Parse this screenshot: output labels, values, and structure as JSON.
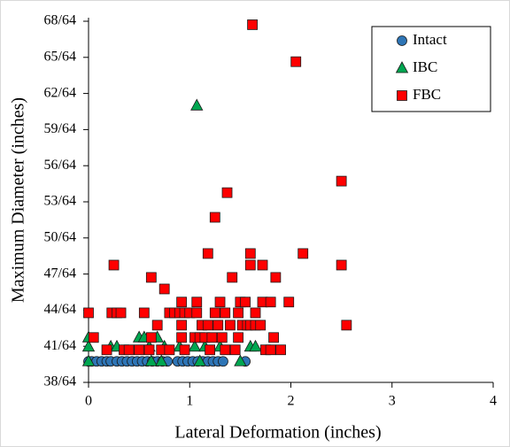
{
  "chart_data": {
    "type": "scatter",
    "x_label": "Lateral Deformation (inches)",
    "y_label": "Maximum Diameter  (inches)",
    "xlim": [
      0,
      4
    ],
    "xticks": [
      0,
      1,
      2,
      3,
      4
    ],
    "ylim": [
      0.59375,
      1.0625
    ],
    "yticks": [
      {
        "value": 0.59375,
        "label": "38/64"
      },
      {
        "value": 0.640625,
        "label": "41/64"
      },
      {
        "value": 0.6875,
        "label": "44/64"
      },
      {
        "value": 0.734375,
        "label": "47/64"
      },
      {
        "value": 0.78125,
        "label": "50/64"
      },
      {
        "value": 0.828125,
        "label": "53/64"
      },
      {
        "value": 0.875,
        "label": "56/64"
      },
      {
        "value": 0.921875,
        "label": "59/64"
      },
      {
        "value": 0.96875,
        "label": "62/64"
      },
      {
        "value": 1.015625,
        "label": "65/64"
      },
      {
        "value": 1.0625,
        "label": "68/64"
      }
    ],
    "legend": "upper right",
    "series": [
      {
        "name": "Intact",
        "color": "#2e75b6",
        "marker": "circle",
        "x": [
          0,
          0.03,
          0.08,
          0.13,
          0.18,
          0.22,
          0.28,
          0.33,
          0.38,
          0.43,
          0.48,
          0.53,
          0.58,
          0.63,
          0.68,
          0.73,
          0.78,
          0.88,
          0.93,
          0.98,
          1.03,
          1.08,
          1.13,
          1.18,
          1.23,
          1.28,
          1.33,
          1.55
        ],
        "values": [
          0.621,
          0.621,
          0.621,
          0.621,
          0.621,
          0.621,
          0.621,
          0.621,
          0.621,
          0.621,
          0.621,
          0.621,
          0.621,
          0.621,
          0.621,
          0.621,
          0.621,
          0.621,
          0.621,
          0.621,
          0.621,
          0.621,
          0.621,
          0.621,
          0.621,
          0.621,
          0.621,
          0.621
        ]
      },
      {
        "name": "IBC",
        "color": "#00a650",
        "marker": "triangle",
        "x": [
          0,
          0,
          0,
          0.22,
          0.28,
          0.5,
          0.55,
          0.6,
          0.62,
          0.68,
          0.72,
          0.75,
          0.9,
          1.05,
          1.07,
          1.1,
          1.15,
          1.3,
          1.5,
          1.6,
          1.65
        ],
        "values": [
          0.621,
          0.64,
          0.652,
          0.64,
          0.64,
          0.652,
          0.652,
          0.64,
          0.621,
          0.652,
          0.621,
          0.64,
          0.64,
          0.64,
          0.953,
          0.621,
          0.64,
          0.64,
          0.621,
          0.64,
          0.64
        ]
      },
      {
        "name": "FBC",
        "color": "#ff0000",
        "marker": "square",
        "x": [
          0,
          0.05,
          0.18,
          0.23,
          0.25,
          0.28,
          0.32,
          0.35,
          0.4,
          0.5,
          0.55,
          0.6,
          0.62,
          0.62,
          0.68,
          0.72,
          0.75,
          0.8,
          0.8,
          0.85,
          0.9,
          0.92,
          0.92,
          0.92,
          0.95,
          0.95,
          1.0,
          1.05,
          1.07,
          1.07,
          1.1,
          1.12,
          1.15,
          1.18,
          1.18,
          1.2,
          1.22,
          1.25,
          1.25,
          1.28,
          1.3,
          1.32,
          1.35,
          1.35,
          1.37,
          1.4,
          1.42,
          1.45,
          1.48,
          1.48,
          1.5,
          1.52,
          1.55,
          1.57,
          1.6,
          1.6,
          1.6,
          1.62,
          1.65,
          1.65,
          1.7,
          1.72,
          1.72,
          1.75,
          1.8,
          1.8,
          1.83,
          1.85,
          1.9,
          1.98,
          2.05,
          2.12,
          2.5,
          2.5,
          2.55
        ],
        "values": [
          0.684,
          0.652,
          0.636,
          0.684,
          0.746,
          0.684,
          0.684,
          0.636,
          0.636,
          0.636,
          0.684,
          0.636,
          0.73,
          0.652,
          0.668,
          0.636,
          0.715,
          0.636,
          0.684,
          0.684,
          0.684,
          0.698,
          0.652,
          0.668,
          0.684,
          0.636,
          0.684,
          0.652,
          0.698,
          0.684,
          0.652,
          0.668,
          0.652,
          0.761,
          0.668,
          0.636,
          0.652,
          0.684,
          0.808,
          0.668,
          0.698,
          0.652,
          0.636,
          0.684,
          0.84,
          0.668,
          0.73,
          0.636,
          0.684,
          0.652,
          0.698,
          0.668,
          0.698,
          0.668,
          0.746,
          0.761,
          0.668,
          1.058,
          0.684,
          0.668,
          0.668,
          0.746,
          0.698,
          0.636,
          0.698,
          0.636,
          0.652,
          0.73,
          0.636,
          0.698,
          1.01,
          0.761,
          0.746,
          0.855,
          0.668
        ]
      }
    ]
  }
}
